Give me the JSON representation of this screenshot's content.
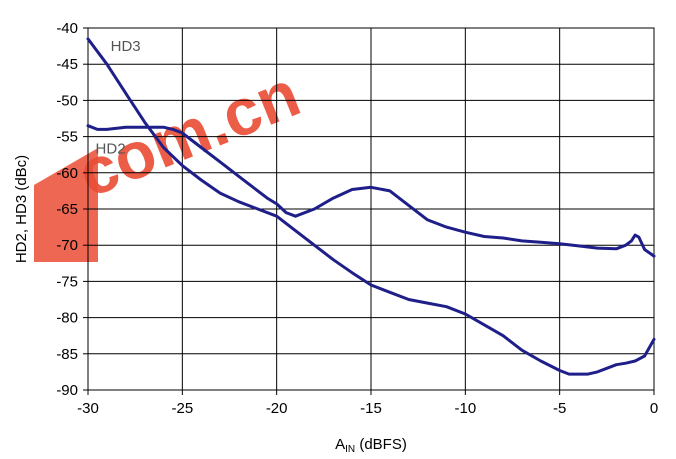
{
  "chart_data": {
    "type": "line",
    "title": "",
    "xlabel": "A",
    "xlabel_sub": "IN",
    "xlabel_suffix": " (dBFS)",
    "ylabel": "HD2, HD3 (dBc)",
    "xlim": [
      -30,
      0
    ],
    "ylim": [
      -90,
      -40
    ],
    "x_ticks": [
      -30,
      -25,
      -20,
      -15,
      -10,
      -5,
      0
    ],
    "y_ticks": [
      -40,
      -45,
      -50,
      -55,
      -60,
      -65,
      -70,
      -75,
      -80,
      -85,
      -90
    ],
    "x_tick_labels": [
      "-30",
      "-25",
      "-20",
      "-15",
      "-10",
      "-5",
      "0"
    ],
    "y_tick_labels": [
      "-40",
      "-45",
      "-50",
      "-55",
      "-60",
      "-65",
      "-70",
      "-75",
      "-80",
      "-85",
      "-90"
    ],
    "grid": true,
    "series": [
      {
        "name": "HD3",
        "color": "#1f1f8a",
        "x": [
          -30,
          -29,
          -28,
          -27,
          -26,
          -25,
          -24,
          -23,
          -22,
          -21,
          -20,
          -19,
          -18,
          -17,
          -16,
          -15,
          -14,
          -13,
          -12,
          -11,
          -10,
          -9,
          -8,
          -7,
          -6,
          -5,
          -4.5,
          -4,
          -3.5,
          -3,
          -2.5,
          -2,
          -1.5,
          -1,
          -0.5,
          0
        ],
        "y": [
          -41.5,
          -45,
          -49,
          -53,
          -56.5,
          -59,
          -61,
          -62.8,
          -64,
          -65,
          -66,
          -68,
          -70,
          -72,
          -73.8,
          -75.5,
          -76.5,
          -77.5,
          -78,
          -78.5,
          -79.5,
          -81,
          -82.5,
          -84.5,
          -86,
          -87.3,
          -87.8,
          -87.8,
          -87.8,
          -87.5,
          -87,
          -86.5,
          -86.3,
          -86,
          -85.3,
          -83
        ]
      },
      {
        "name": "HD2",
        "color": "#1f1f8a",
        "x": [
          -30,
          -29.5,
          -29,
          -28,
          -27,
          -26,
          -25.5,
          -25,
          -24,
          -23,
          -22,
          -21,
          -20.5,
          -20,
          -19.5,
          -19,
          -18,
          -17,
          -16,
          -15,
          -14,
          -13,
          -12,
          -11,
          -10,
          -9,
          -8,
          -7,
          -6,
          -5,
          -4,
          -3,
          -2,
          -1.5,
          -1.2,
          -1,
          -0.8,
          -0.5,
          0
        ],
        "y": [
          -53.5,
          -54,
          -54,
          -53.7,
          -53.7,
          -53.7,
          -54,
          -54.5,
          -56.5,
          -58.5,
          -60.5,
          -62.5,
          -63.5,
          -64.3,
          -65.5,
          -66,
          -65,
          -63.5,
          -62.3,
          -62,
          -62.5,
          -64.5,
          -66.5,
          -67.5,
          -68.2,
          -68.8,
          -69,
          -69.4,
          -69.6,
          -69.8,
          -70.1,
          -70.4,
          -70.5,
          -70,
          -69.4,
          -68.6,
          -68.9,
          -70.6,
          -71.5
        ]
      }
    ],
    "annotations": [
      {
        "text": "HD3",
        "x": -28.8,
        "y": -43.2
      },
      {
        "text": "HD2",
        "x": -29.6,
        "y": -57.3
      }
    ],
    "watermark": {
      "text": "com.cn",
      "color": "#e8391f"
    }
  }
}
